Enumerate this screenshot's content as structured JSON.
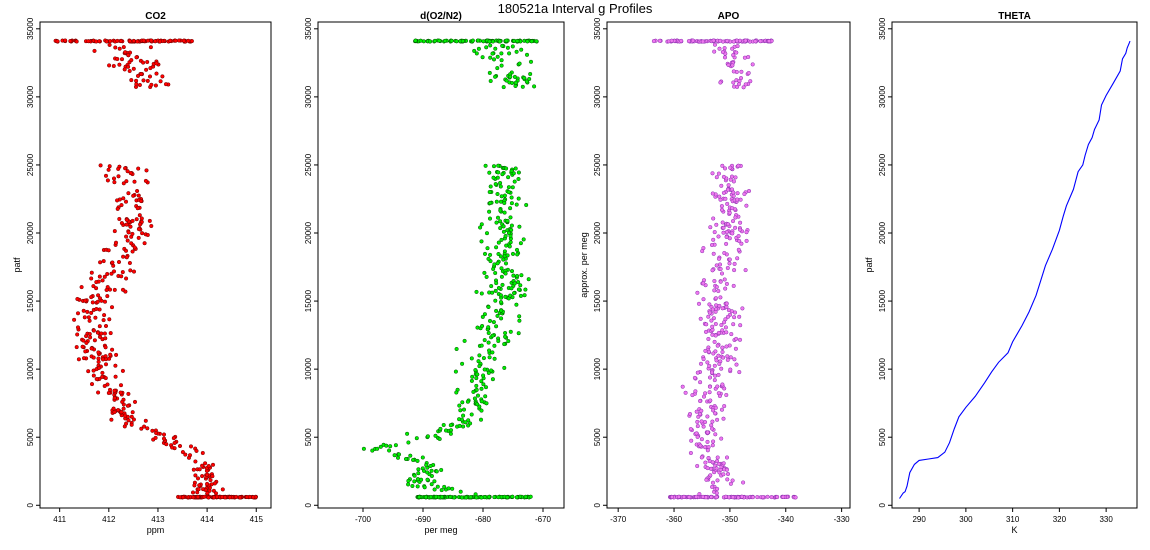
{
  "page_title": "180521a   Interval g Profiles",
  "chart_data": [
    {
      "type": "scatter",
      "title": "CO2",
      "xlabel": "ppm",
      "ylabel": "patf",
      "xlim": [
        410.6,
        415.3
      ],
      "ylim": [
        -200,
        35500
      ],
      "xticks": [
        411,
        412,
        413,
        414,
        415
      ],
      "yticks": [
        0,
        5000,
        10000,
        15000,
        20000,
        25000,
        30000,
        35000
      ],
      "color": "#ff0000",
      "outline": "#6b0000",
      "grid": false,
      "points_summary": [
        {
          "y": 34100,
          "x_range": [
            410.9,
            413.7
          ],
          "note": "dense band at top"
        },
        {
          "y": 33000,
          "x": 412.2
        },
        {
          "y": 32200,
          "x": 412.6
        },
        {
          "y": 31300,
          "x": 413.0
        },
        {
          "y": 24000,
          "x": 412.4
        },
        {
          "y": 22000,
          "x": 412.2
        },
        {
          "y": 20000,
          "x": 412.5
        },
        {
          "y": 18000,
          "x": 412.1
        },
        {
          "y": 16000,
          "x": 411.7
        },
        {
          "y": 14000,
          "x": 411.9
        },
        {
          "y": 12000,
          "x": 411.6
        },
        {
          "y": 10000,
          "x": 411.9
        },
        {
          "y": 8000,
          "x": 412.2
        },
        {
          "y": 6000,
          "x": 412.5
        },
        {
          "y": 4500,
          "x": 413.9
        },
        {
          "y": 2500,
          "x": 414.0
        },
        {
          "y": 600,
          "x_range": [
            413.4,
            415.0
          ],
          "note": "dense band at bottom"
        }
      ],
      "profile": [
        [
          34100,
          412.2,
          0.75
        ],
        [
          31000,
          412.8,
          0.5
        ],
        [
          24500,
          412.3,
          0.55
        ],
        [
          21000,
          412.5,
          0.5
        ],
        [
          18000,
          412.2,
          0.55
        ],
        [
          15000,
          411.7,
          0.5
        ],
        [
          12000,
          411.7,
          0.55
        ],
        [
          9000,
          412.0,
          0.5
        ],
        [
          6000,
          412.4,
          0.45
        ],
        [
          5000,
          413.2,
          0.45
        ],
        [
          3000,
          414.0,
          0.35
        ],
        [
          1000,
          414.0,
          0.4
        ],
        [
          600,
          414.0,
          0.55
        ]
      ],
      "gap": [
        25000,
        30700
      ],
      "top_band": {
        "y": 34100,
        "x_range": [
          410.9,
          413.7
        ]
      },
      "bottom_band": {
        "y": 600,
        "x_range": [
          413.4,
          415.0
        ]
      }
    },
    {
      "type": "scatter",
      "title": "d(O2/N2)",
      "xlabel": "per meg",
      "ylabel": "",
      "xlim": [
        -707.5,
        -666.5
      ],
      "ylim": [
        -200,
        35500
      ],
      "xticks": [
        -700,
        -690,
        -680,
        -670
      ],
      "yticks": [
        0,
        5000,
        10000,
        15000,
        20000,
        25000,
        30000,
        35000
      ],
      "color": "#00ee00",
      "outline": "#005000",
      "grid": false,
      "profile": [
        [
          34100,
          -678,
          5.0
        ],
        [
          31500,
          -675,
          4.0
        ],
        [
          24000,
          -676,
          4.0
        ],
        [
          20000,
          -677,
          4.0
        ],
        [
          16000,
          -676,
          4.5
        ],
        [
          12000,
          -679,
          4.5
        ],
        [
          8000,
          -681,
          4.5
        ],
        [
          6000,
          -683,
          4.0
        ],
        [
          5000,
          -690,
          5.0
        ],
        [
          4200,
          -698,
          3.0
        ],
        [
          3000,
          -689,
          3.5
        ],
        [
          1500,
          -690,
          4.0
        ],
        [
          600,
          -682,
          5.0
        ]
      ],
      "gap": [
        25000,
        30700
      ],
      "top_band": {
        "y": 34100,
        "x_range": [
          -692,
          -671
        ]
      },
      "bottom_band": {
        "y": 600,
        "x_range": [
          -691,
          -672
        ]
      }
    },
    {
      "type": "scatter",
      "title": "APO",
      "xlabel": "",
      "ylabel": "approx. per meg",
      "xlim": [
        -372,
        -328.5
      ],
      "ylim": [
        -200,
        35500
      ],
      "xticks": [
        -370,
        -360,
        -350,
        -340,
        -330
      ],
      "yticks": [
        0,
        5000,
        10000,
        15000,
        20000,
        25000,
        30000,
        35000
      ],
      "color": "#ee77ee",
      "outline": "#8a2fb0",
      "grid": false,
      "profile": [
        [
          34100,
          -352,
          5.0
        ],
        [
          31500,
          -348,
          4.0
        ],
        [
          24000,
          -350,
          3.5
        ],
        [
          20000,
          -350,
          4.0
        ],
        [
          16000,
          -352,
          4.5
        ],
        [
          12000,
          -352,
          5.0
        ],
        [
          8000,
          -354,
          5.0
        ],
        [
          5000,
          -355,
          5.0
        ],
        [
          2500,
          -352,
          4.0
        ],
        [
          600,
          -350,
          5.0
        ]
      ],
      "gap": [
        25000,
        30700
      ],
      "top_band": {
        "y": 34100,
        "x_range": [
          -365,
          -342
        ]
      },
      "bottom_band": {
        "y": 600,
        "x_range": [
          -361,
          -338
        ]
      }
    },
    {
      "type": "line",
      "title": "THETA",
      "xlabel": "K",
      "ylabel": "patf",
      "xlim": [
        284.2,
        336.6
      ],
      "ylim": [
        -200,
        35500
      ],
      "xticks": [
        290,
        300,
        310,
        320,
        330
      ],
      "yticks": [
        0,
        5000,
        10000,
        15000,
        20000,
        25000,
        30000,
        35000
      ],
      "color": "#0000ff",
      "grid": false,
      "x": [
        285.8,
        286.6,
        287.0,
        287.4,
        288.0,
        289.0,
        290.0,
        292.0,
        294.0,
        295.5,
        296.5,
        297.5,
        298.5,
        300.0,
        302.0,
        304.0,
        305.5,
        307.0,
        309.0,
        310.0,
        312.0,
        313.5,
        315.0,
        316.0,
        317.0,
        318.5,
        320.0,
        320.8,
        321.5,
        323.0,
        324.0,
        325.0,
        325.5,
        326.2,
        327.0,
        327.5,
        328.5,
        329.0,
        330.0,
        331.5,
        333.0,
        333.5,
        334.2,
        334.5,
        335.0,
        335.1
      ],
      "y": [
        500,
        900,
        1000,
        1400,
        2400,
        3000,
        3300,
        3400,
        3500,
        3900,
        4600,
        5600,
        6500,
        7200,
        8000,
        9000,
        9800,
        10500,
        11200,
        12000,
        13200,
        14200,
        15400,
        16500,
        17600,
        18800,
        20200,
        21200,
        22000,
        23200,
        24500,
        25000,
        25700,
        26500,
        27000,
        27600,
        28300,
        29400,
        30100,
        31000,
        31900,
        32800,
        33200,
        33600,
        34000,
        34100
      ]
    }
  ]
}
